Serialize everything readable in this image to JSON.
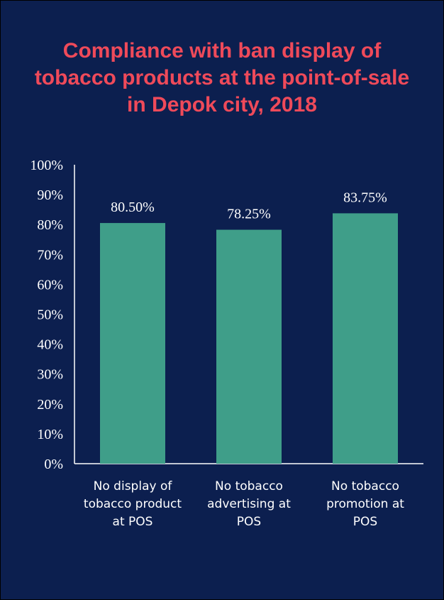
{
  "chart_data": {
    "type": "bar",
    "title_lines": [
      "Compliance with ban display of",
      "tobacco products at the point-of-sale",
      "in Depok city, 2018"
    ],
    "categories": [
      [
        "No display of",
        "tobacco product",
        "at POS"
      ],
      [
        "No tobacco",
        "advertising at",
        "POS"
      ],
      [
        "No tobacco",
        "promotion at",
        "POS"
      ]
    ],
    "values": [
      80.5,
      78.25,
      83.75
    ],
    "data_labels": [
      "80.50%",
      "78.25%",
      "83.75%"
    ],
    "y_ticks": [
      "0%",
      "10%",
      "20%",
      "30%",
      "40%",
      "50%",
      "60%",
      "70%",
      "80%",
      "90%",
      "100%"
    ],
    "ylim": [
      0,
      100
    ],
    "grid": false,
    "legend": "none"
  },
  "colors": {
    "background": "#0c1f4f",
    "title": "#ef4a5a",
    "bar": "#3f9e89",
    "text": "#ffffff",
    "axis": "#ffffff"
  }
}
